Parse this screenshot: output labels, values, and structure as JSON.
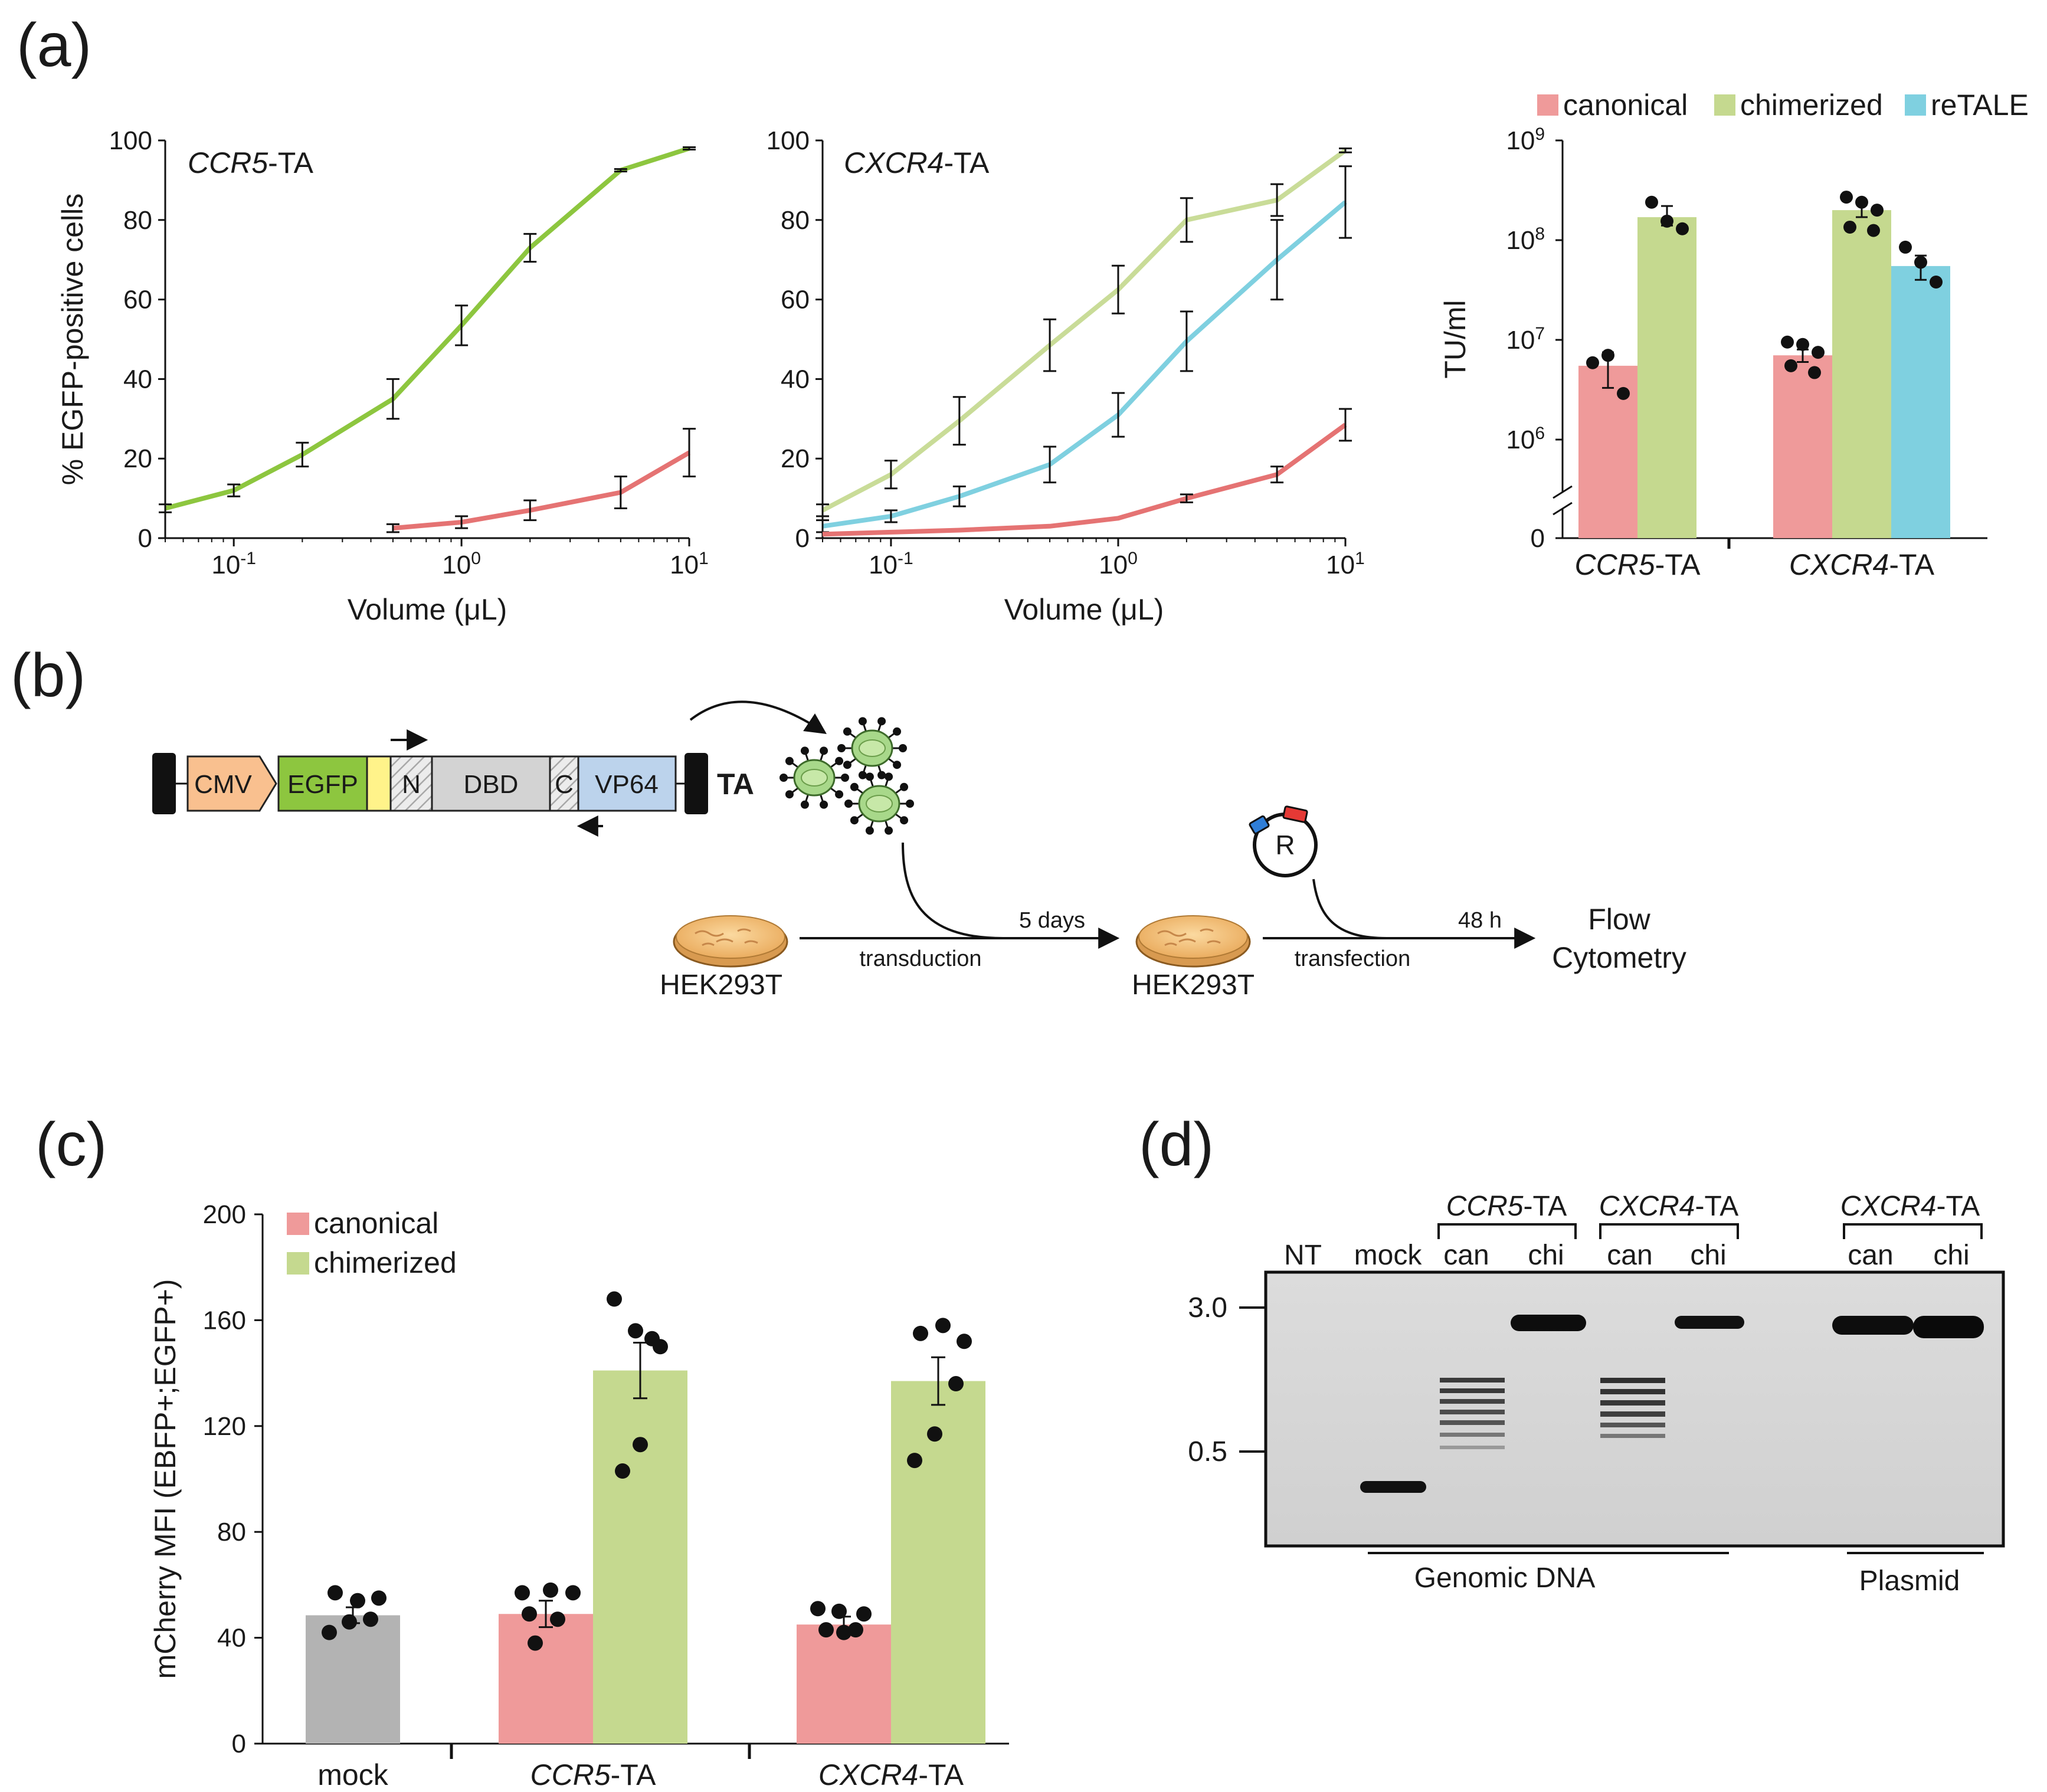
{
  "panel_labels": {
    "a": "(a)",
    "b": "(b)",
    "c": "(c)",
    "d": "(d)"
  },
  "colors": {
    "canonical": "#ef9a9a",
    "canonical_line": "#e57373",
    "chimerized": "#c5d98f",
    "chimerized_line": "#8dc63f",
    "chimerized_light": "#c9dc98",
    "retale": "#7fd0e0",
    "mock": "#b3b3b3",
    "cmv": "#f9c08f",
    "egfp": "#8dc63f",
    "linker": "#fff38a",
    "vp64": "#bcd3ec",
    "dbd": "#d3d3d3",
    "dish": "#f5c27a"
  },
  "chart_data": [
    {
      "id": "a1",
      "type": "line",
      "xscale": "log",
      "title": "-TA",
      "title_italic": "CCR5",
      "xlabel": "Volume (μL)",
      "ylabel": "% EGFP-positive cells",
      "xlim": [
        0.05,
        10
      ],
      "ylim": [
        0,
        100
      ],
      "xticks": [
        {
          "base": "10",
          "exp": "-1"
        },
        {
          "base": "10",
          "exp": "0"
        },
        {
          "base": "10",
          "exp": "1"
        }
      ],
      "yticks": [
        "0",
        "20",
        "40",
        "60",
        "80",
        "100"
      ],
      "series": [
        {
          "name": "chimerized",
          "color_key": "chimerized_line",
          "x": [
            0.05,
            0.1,
            0.2,
            0.5,
            1,
            2,
            5,
            10
          ],
          "y": [
            7.5,
            12,
            21,
            35,
            53.5,
            73,
            92.5,
            98
          ],
          "err": [
            1,
            1.5,
            3,
            5,
            5,
            3.5,
            0.3,
            0.3
          ]
        },
        {
          "name": "canonical",
          "color_key": "canonical_line",
          "x": [
            0.5,
            1,
            2,
            5,
            10
          ],
          "y": [
            2.5,
            4,
            7,
            11.5,
            21.5
          ],
          "err": [
            1,
            1.5,
            2.5,
            4,
            6
          ]
        }
      ]
    },
    {
      "id": "a2",
      "type": "line",
      "xscale": "log",
      "title": "-TA",
      "title_italic": "CXCR4",
      "xlabel": "Volume (μL)",
      "ylabel": "",
      "xlim": [
        0.05,
        10
      ],
      "ylim": [
        0,
        100
      ],
      "xticks": [
        {
          "base": "10",
          "exp": "-1"
        },
        {
          "base": "10",
          "exp": "0"
        },
        {
          "base": "10",
          "exp": "1"
        }
      ],
      "yticks": [
        "0",
        "20",
        "40",
        "60",
        "80",
        "100"
      ],
      "series": [
        {
          "name": "chimerized",
          "color_key": "chimerized_light",
          "x": [
            0.05,
            0.1,
            0.2,
            0.5,
            1,
            2,
            5,
            10
          ],
          "y": [
            7,
            16,
            29.5,
            48.5,
            62.5,
            80,
            85,
            97.5
          ],
          "err": [
            1.5,
            3.5,
            6,
            6.5,
            6,
            5.5,
            4,
            0.5
          ]
        },
        {
          "name": "reTALE",
          "color_key": "retale",
          "x": [
            0.05,
            0.1,
            0.2,
            0.5,
            1,
            2,
            5,
            10
          ],
          "y": [
            3,
            5.5,
            10.5,
            18.5,
            31,
            49.5,
            70,
            84.5
          ],
          "err": [
            1.5,
            1.5,
            2.5,
            4.5,
            5.5,
            7.5,
            10,
            9
          ]
        },
        {
          "name": "canonical",
          "color_key": "canonical_line",
          "x": [
            0.05,
            0.1,
            0.2,
            0.5,
            1,
            2,
            5,
            10
          ],
          "y": [
            1,
            1.5,
            2,
            3,
            5,
            10,
            16,
            28.5
          ],
          "err": [
            0,
            0,
            0,
            0,
            0,
            1,
            2,
            4
          ]
        }
      ]
    },
    {
      "id": "a3",
      "type": "bar",
      "yscale": "log",
      "ylabel": "TU/ml",
      "legend": [
        "canonical",
        "chimerized",
        "reTALE"
      ],
      "yticks": [
        {
          "base": "10",
          "exp": "9"
        },
        {
          "base": "10",
          "exp": "8"
        },
        {
          "base": "10",
          "exp": "7"
        },
        {
          "base": "10",
          "exp": "6"
        }
      ],
      "ytick_zero": "0",
      "categories": [
        {
          "italic": "CCR5",
          "rest": "-TA"
        },
        {
          "italic": "CXCR4",
          "rest": "-TA"
        }
      ],
      "groups": [
        {
          "bars": [
            {
              "name": "canonical",
              "value": 5500000.0,
              "err_lo": 2200000.0,
              "err_hi": 2000000.0,
              "points": [
                5900000.0,
                7000000.0,
                2900000.0
              ]
            },
            {
              "name": "chimerized",
              "value": 170000000.0,
              "err_lo": 30000000.0,
              "err_hi": 50000000.0,
              "points": [
                240000000.0,
                155000000.0,
                130000000.0
              ]
            }
          ]
        },
        {
          "bars": [
            {
              "name": "canonical",
              "value": 7000000.0,
              "err_lo": 1000000.0,
              "err_hi": 1000000.0,
              "points": [
                9500000.0,
                9000000.0,
                7500000.0,
                5500000.0,
                4700000.0
              ]
            },
            {
              "name": "chimerized",
              "value": 200000000.0,
              "err_lo": 30000000.0,
              "err_hi": 30000000.0,
              "points": [
                270000000.0,
                240000000.0,
                200000000.0,
                135000000.0,
                125000000.0
              ]
            },
            {
              "name": "reTALE",
              "value": 55000000.0,
              "err_lo": 15000000.0,
              "err_hi": 15000000.0,
              "points": [
                85000000.0,
                60000000.0,
                38000000.0
              ]
            }
          ]
        }
      ]
    },
    {
      "id": "c",
      "type": "bar",
      "ylabel": "mCherry MFI (EBFP+;EGFP+)",
      "ylim": [
        0,
        200
      ],
      "yticks": [
        "0",
        "40",
        "80",
        "120",
        "160",
        "200"
      ],
      "legend": [
        "canonical",
        "chimerized"
      ],
      "categories": [
        {
          "italic": "",
          "rest": "mock"
        },
        {
          "italic": "CCR5",
          "rest": "-TA"
        },
        {
          "italic": "CXCR4",
          "rest": "-TA"
        }
      ],
      "groups": [
        {
          "bars": [
            {
              "name": "mock",
              "value": 48.5,
              "err": 3,
              "points": [
                57,
                54,
                55,
                47,
                46,
                42
              ]
            }
          ]
        },
        {
          "bars": [
            {
              "name": "canonical",
              "value": 49,
              "err": 5,
              "points": [
                57,
                58,
                57,
                49,
                47,
                38
              ]
            },
            {
              "name": "chimerized",
              "value": 141,
              "err": 10.5,
              "points": [
                168,
                156,
                150,
                153,
                113,
                103
              ]
            }
          ]
        },
        {
          "bars": [
            {
              "name": "canonical",
              "value": 45,
              "err": 3,
              "points": [
                51,
                50,
                49,
                43,
                42,
                43
              ]
            },
            {
              "name": "chimerized",
              "value": 137,
              "err": 9,
              "points": [
                155,
                158,
                152,
                136,
                117,
                107
              ]
            }
          ]
        }
      ]
    }
  ],
  "diagram_b": {
    "boxes": {
      "cmv": "CMV",
      "egfp": "EGFP",
      "n": "N",
      "dbd": "DBD",
      "c": "C",
      "vp64": "VP64"
    },
    "ta_label": "TA",
    "days_label": "5 days",
    "transduction_label": "transduction",
    "transfection_label": "transfection",
    "hours_label": "48 h",
    "cell1": "HEK293T",
    "cell2": "HEK293T",
    "reporter_label": "R",
    "flow_line1": "Flow",
    "flow_line2": "Cytometry"
  },
  "gel_d": {
    "headers": {
      "group1_italic": "CCR5",
      "group1_rest": "-TA",
      "group2_italic": "CXCR4",
      "group2_rest": "-TA",
      "group3_italic": "CXCR4",
      "group3_rest": "-TA"
    },
    "lanes": [
      "NT",
      "mock",
      "can",
      "chi",
      "can",
      "chi",
      "can",
      "chi"
    ],
    "markers": [
      "3.0",
      "0.5"
    ],
    "footer_genomic": "Genomic DNA",
    "footer_plasmid": "Plasmid"
  }
}
